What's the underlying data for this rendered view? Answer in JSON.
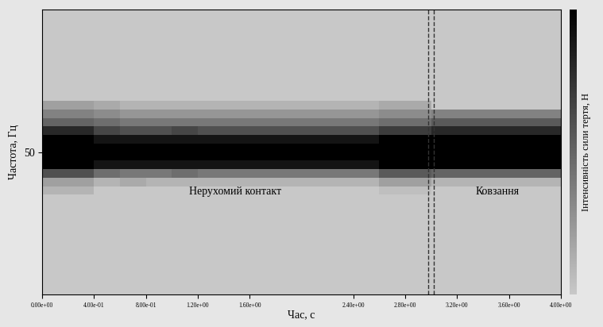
{
  "chart_data": {
    "type": "heatmap",
    "x_label": "Час, с",
    "y_label": "Частота, Гц",
    "colorbar_label": "Інтенсивність сили тертя, Н",
    "xlim": [
      0,
      4
    ],
    "ylim": [
      0,
      100
    ],
    "xticks": [
      {
        "value": 0,
        "label": "0.00e+00"
      },
      {
        "value": 0.4,
        "label": "4.00e-01"
      },
      {
        "value": 0.8,
        "label": "8.00e-01"
      },
      {
        "value": 1.2,
        "label": "1.20e+00"
      },
      {
        "value": 1.6,
        "label": "1.60e+00"
      },
      {
        "value": 2.4,
        "label": "2.40e+00"
      },
      {
        "value": 2.8,
        "label": "2.80e+00"
      },
      {
        "value": 3.2,
        "label": "3.20e+00"
      },
      {
        "value": 3.6,
        "label": "3.60e+00"
      },
      {
        "value": 4.0,
        "label": "4.00e+00"
      }
    ],
    "yticks": [
      50
    ],
    "boundaries": [
      2.98,
      3.02
    ],
    "regions": [
      {
        "label": "Нерухомий контакт",
        "start": 0,
        "end": 2.98
      },
      {
        "label": "Ковзання",
        "start": 3.02,
        "end": 4
      }
    ],
    "time_bins": [
      0,
      0.2,
      0.4,
      0.6,
      0.8,
      1.0,
      1.2,
      1.4,
      1.6,
      1.8,
      2.0,
      2.2,
      2.4,
      2.6,
      2.8,
      3.0,
      3.2,
      3.4,
      3.6,
      3.8,
      4.0
    ],
    "frequency_bins": [
      35,
      38,
      41,
      44,
      47,
      50,
      53,
      56,
      59,
      62,
      65,
      68
    ],
    "colorbar_range": [
      0,
      1
    ],
    "cells": [
      [
        0.1,
        0.1,
        0,
        0,
        0,
        0,
        0,
        0,
        0,
        0,
        0,
        0,
        0,
        0.05,
        0.05,
        0,
        0,
        0,
        0,
        0
      ],
      [
        0.2,
        0.2,
        0.1,
        0.15,
        0.1,
        0.1,
        0.1,
        0.1,
        0.1,
        0.1,
        0.1,
        0.1,
        0.1,
        0.2,
        0.2,
        0.1,
        0.1,
        0.1,
        0.1,
        0.1
      ],
      [
        0.6,
        0.6,
        0.45,
        0.4,
        0.4,
        0.45,
        0.4,
        0.4,
        0.4,
        0.4,
        0.4,
        0.4,
        0.4,
        0.55,
        0.55,
        0.5,
        0.5,
        0.5,
        0.5,
        0.5
      ],
      [
        1,
        1,
        0.9,
        0.9,
        0.9,
        0.9,
        0.9,
        0.9,
        0.9,
        0.9,
        0.9,
        0.9,
        0.9,
        1,
        1,
        1,
        1,
        1,
        1,
        1
      ],
      [
        1,
        1,
        1,
        1,
        1,
        1,
        1,
        1,
        1,
        1,
        1,
        1,
        1,
        1,
        1,
        1,
        1,
        1,
        1,
        1
      ],
      [
        1,
        1,
        1,
        1,
        1,
        1,
        1,
        1,
        1,
        1,
        1,
        1,
        1,
        1,
        1,
        1,
        1,
        1,
        1,
        1
      ],
      [
        1,
        1,
        0.9,
        0.9,
        0.9,
        0.9,
        0.9,
        0.9,
        0.9,
        0.9,
        0.9,
        0.9,
        0.9,
        1,
        1,
        1,
        1,
        1,
        1,
        1
      ],
      [
        0.8,
        0.8,
        0.65,
        0.6,
        0.6,
        0.65,
        0.6,
        0.6,
        0.6,
        0.6,
        0.6,
        0.6,
        0.6,
        0.7,
        0.7,
        0.8,
        0.8,
        0.8,
        0.8,
        0.8
      ],
      [
        0.5,
        0.5,
        0.45,
        0.4,
        0.4,
        0.4,
        0.4,
        0.4,
        0.4,
        0.4,
        0.4,
        0.4,
        0.4,
        0.45,
        0.45,
        0.55,
        0.55,
        0.55,
        0.55,
        0.55
      ],
      [
        0.35,
        0.35,
        0.3,
        0.25,
        0.25,
        0.25,
        0.25,
        0.25,
        0.25,
        0.25,
        0.25,
        0.25,
        0.25,
        0.3,
        0.3,
        0.35,
        0.35,
        0.35,
        0.35,
        0.35
      ],
      [
        0.2,
        0.2,
        0.15,
        0.1,
        0.1,
        0.1,
        0.1,
        0.1,
        0.1,
        0.1,
        0.1,
        0.1,
        0.1,
        0.15,
        0.15,
        0,
        0,
        0,
        0,
        0
      ]
    ]
  }
}
